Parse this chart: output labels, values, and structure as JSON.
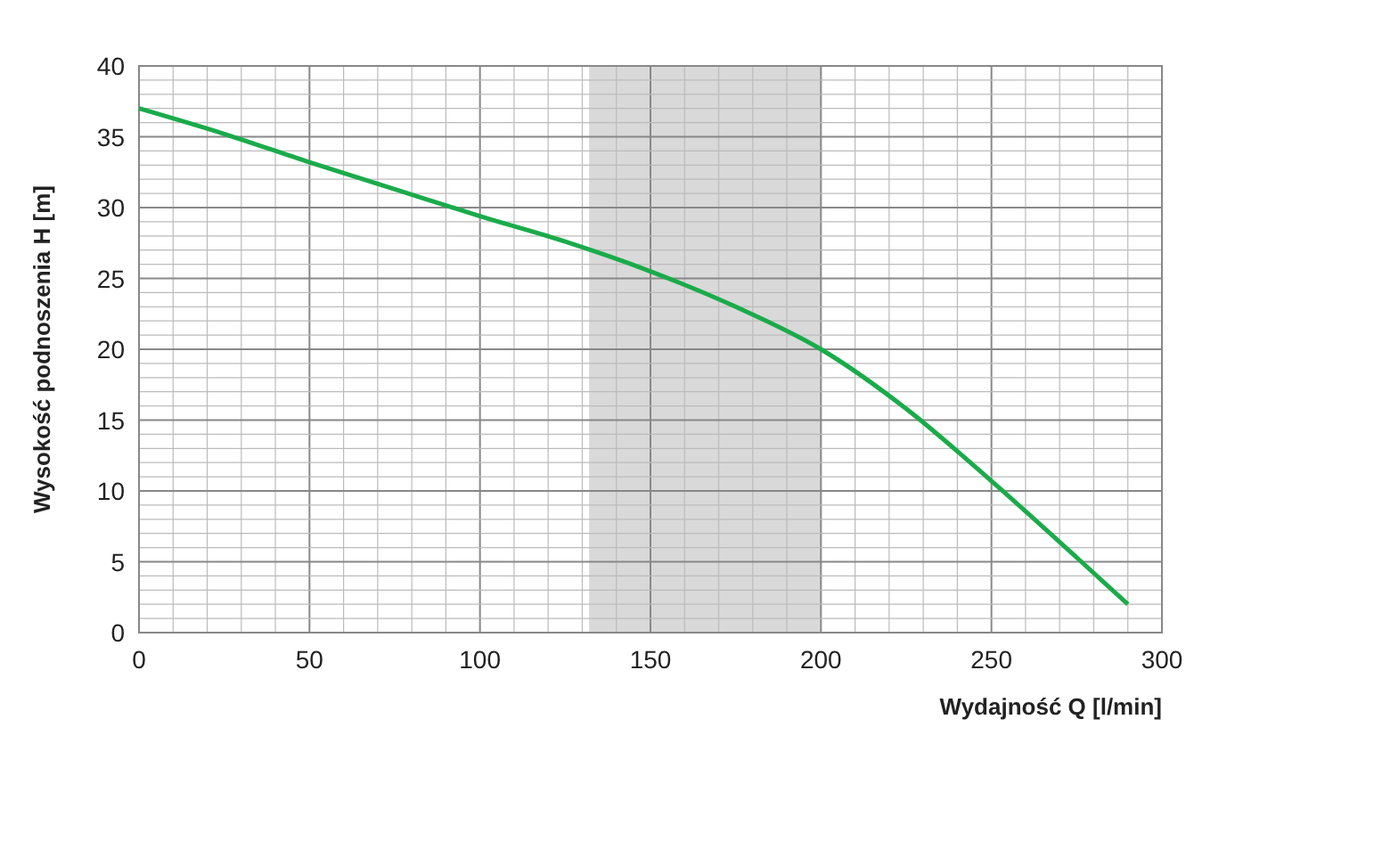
{
  "chart_data": {
    "type": "line",
    "xlabel": "Wydajność Q [l/min]",
    "ylabel": "Wysokość podnoszenia H [m]",
    "xlim": [
      0,
      300
    ],
    "ylim": [
      0,
      40
    ],
    "xticks": [
      0,
      {
        "value": 10,
        "label": null
      },
      {
        "value": 20,
        "label": null
      },
      {
        "value": 30,
        "label": null
      },
      {
        "value": 40,
        "label": null
      },
      50,
      {
        "value": 60,
        "label": null
      },
      {
        "value": 70,
        "label": null
      },
      {
        "value": 80,
        "label": null
      },
      {
        "value": 90,
        "label": null
      },
      100,
      {
        "value": 110,
        "label": null
      },
      {
        "value": 120,
        "label": null
      },
      {
        "value": 130,
        "label": null
      },
      {
        "value": 140,
        "label": null
      },
      150,
      {
        "value": 160,
        "label": null
      },
      {
        "value": 170,
        "label": null
      },
      {
        "value": 180,
        "label": null
      },
      {
        "value": 190,
        "label": null
      },
      200,
      {
        "value": 210,
        "label": null
      },
      {
        "value": 220,
        "label": null
      },
      {
        "value": 230,
        "label": null
      },
      {
        "value": 240,
        "label": null
      },
      250,
      {
        "value": 260,
        "label": null
      },
      {
        "value": 270,
        "label": null
      },
      {
        "value": 280,
        "label": null
      },
      {
        "value": 290,
        "label": null
      },
      300
    ],
    "yticks": [
      0,
      {
        "value": 1,
        "label": null
      },
      {
        "value": 2,
        "label": null
      },
      {
        "value": 3,
        "label": null
      },
      {
        "value": 4,
        "label": null
      },
      5,
      {
        "value": 6,
        "label": null
      },
      {
        "value": 7,
        "label": null
      },
      {
        "value": 8,
        "label": null
      },
      {
        "value": 9,
        "label": null
      },
      10,
      {
        "value": 11,
        "label": null
      },
      {
        "value": 12,
        "label": null
      },
      {
        "value": 13,
        "label": null
      },
      {
        "value": 14,
        "label": null
      },
      15,
      {
        "value": 16,
        "label": null
      },
      {
        "value": 17,
        "label": null
      },
      {
        "value": 18,
        "label": null
      },
      {
        "value": 19,
        "label": null
      },
      20,
      {
        "value": 21,
        "label": null
      },
      {
        "value": 22,
        "label": null
      },
      {
        "value": 23,
        "label": null
      },
      {
        "value": 24,
        "label": null
      },
      25,
      {
        "value": 26,
        "label": null
      },
      {
        "value": 27,
        "label": null
      },
      {
        "value": 28,
        "label": null
      },
      {
        "value": 29,
        "label": null
      },
      30,
      {
        "value": 31,
        "label": null
      },
      {
        "value": 32,
        "label": null
      },
      {
        "value": 33,
        "label": null
      },
      {
        "value": 34,
        "label": null
      },
      35,
      {
        "value": 36,
        "label": null
      },
      {
        "value": 37,
        "label": null
      },
      {
        "value": 38,
        "label": null
      },
      {
        "value": 39,
        "label": null
      },
      40
    ],
    "grid": true,
    "bands": [
      {
        "axis": "x",
        "from": 132,
        "to": 200,
        "color": "#d9d9d9"
      }
    ],
    "series": [
      {
        "color": "#1aab4a",
        "x": [
          0,
          25,
          50,
          75,
          100,
          125,
          150,
          175,
          200,
          225,
          250,
          275,
          290
        ],
        "values": [
          37,
          35.2,
          33.2,
          31.3,
          29.4,
          27.6,
          25.5,
          23,
          20,
          15.8,
          10.7,
          5.3,
          2
        ]
      }
    ]
  }
}
